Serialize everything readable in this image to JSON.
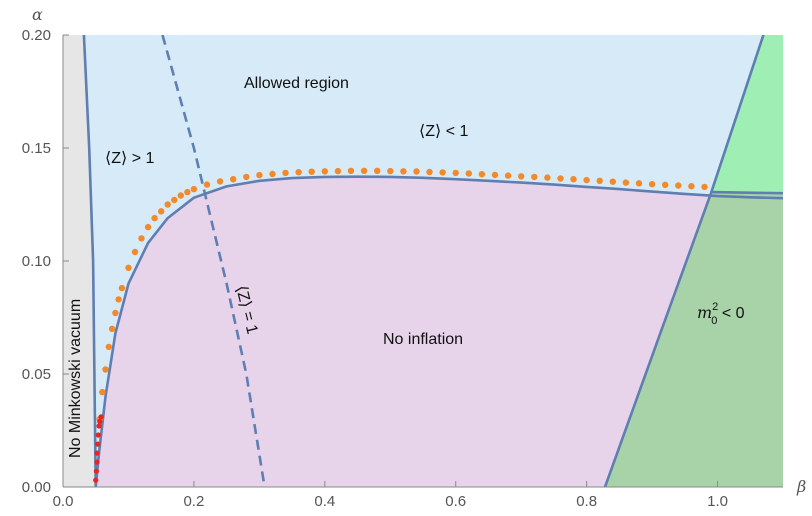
{
  "chart_data": {
    "type": "area",
    "title": "",
    "xlabel": "β",
    "ylabel": "α",
    "xlim": [
      0.0,
      1.1
    ],
    "ylim": [
      0.0,
      0.2
    ],
    "x_ticks": [
      "0.0",
      "0.2",
      "0.4",
      "0.6",
      "0.8",
      "1.0"
    ],
    "x_tick_values": [
      0.0,
      0.2,
      0.4,
      0.6,
      0.8,
      1.0
    ],
    "y_ticks": [
      "0.00",
      "0.05",
      "0.10",
      "0.15",
      "0.20"
    ],
    "y_tick_values": [
      0.0,
      0.05,
      0.1,
      0.15,
      0.2
    ],
    "grid": false,
    "regions": [
      {
        "label": "No Minkowski vacuum",
        "color": "#e6e6e6",
        "boundary": [
          [
            0.0,
            0.2
          ],
          [
            0.032,
            0.2
          ],
          [
            0.04,
            0.15
          ],
          [
            0.046,
            0.1
          ],
          [
            0.05,
            0.0
          ],
          [
            0.0,
            0.0
          ]
        ]
      },
      {
        "label": "Allowed region",
        "color": "#d6eaf8"
      },
      {
        "label": "No inflation",
        "color": "#e7d3ea"
      },
      {
        "label": "m²₀ < 0",
        "color": "#a8d3a8"
      },
      {
        "label": "",
        "color": "#9fefb4"
      }
    ],
    "curves": [
      {
        "name": "no-inflation-boundary",
        "color": "#5f7eb2",
        "style": "solid",
        "x": [
          0.05,
          0.055,
          0.065,
          0.08,
          0.1,
          0.13,
          0.16,
          0.2,
          0.25,
          0.3,
          0.35,
          0.4,
          0.45,
          0.5,
          0.55,
          0.6,
          0.65,
          0.7,
          0.75,
          0.8,
          0.85,
          0.9,
          0.95,
          0.98,
          1.0,
          1.05,
          1.1
        ],
        "y": [
          0.0,
          0.015,
          0.04,
          0.068,
          0.09,
          0.108,
          0.119,
          0.128,
          0.133,
          0.1355,
          0.1367,
          0.1372,
          0.1373,
          0.1372,
          0.1368,
          0.1362,
          0.1355,
          0.1347,
          0.1338,
          0.1328,
          0.1318,
          0.1307,
          0.1297,
          0.1291,
          0.1287,
          0.1282,
          0.1278
        ]
      },
      {
        "name": "minkowski-boundary",
        "color": "#5f7eb2",
        "style": "solid",
        "x": [
          0.032,
          0.04,
          0.046,
          0.05
        ],
        "y": [
          0.2,
          0.15,
          0.1,
          0.0
        ]
      },
      {
        "name": "Z-equals-1",
        "color": "#5f7eb2",
        "style": "dashed",
        "x": [
          0.152,
          0.2,
          0.25,
          0.28,
          0.308
        ],
        "y": [
          0.2,
          0.15,
          0.09,
          0.05,
          0.0
        ]
      },
      {
        "name": "mass-boundary",
        "color": "#5f7eb2",
        "style": "solid",
        "x": [
          0.828,
          0.915,
          0.99,
          1.07
        ],
        "y": [
          0.0,
          0.07,
          0.13,
          0.2
        ]
      },
      {
        "name": "upper-right-boundary",
        "color": "#5f7eb2",
        "style": "solid",
        "x": [
          0.99,
          1.1
        ],
        "y": [
          0.1305,
          0.13
        ]
      }
    ],
    "scatter": [
      {
        "color": "#f2892a",
        "x": [
          0.056,
          0.06,
          0.065,
          0.07,
          0.075,
          0.08,
          0.085,
          0.09,
          0.1,
          0.11,
          0.12,
          0.13,
          0.14,
          0.15,
          0.16,
          0.17,
          0.18,
          0.19,
          0.2,
          0.22,
          0.24,
          0.26,
          0.28,
          0.3,
          0.32,
          0.34,
          0.36,
          0.38,
          0.4,
          0.42,
          0.44,
          0.46,
          0.48,
          0.5,
          0.52,
          0.54,
          0.56,
          0.58,
          0.6,
          0.62,
          0.64,
          0.66,
          0.68,
          0.7,
          0.72,
          0.74,
          0.76,
          0.78,
          0.8,
          0.82,
          0.84,
          0.86,
          0.88,
          0.9,
          0.92,
          0.94,
          0.96,
          0.98
        ],
        "y": [
          0.03,
          0.042,
          0.052,
          0.062,
          0.07,
          0.077,
          0.083,
          0.088,
          0.097,
          0.104,
          0.11,
          0.115,
          0.119,
          0.122,
          0.125,
          0.127,
          0.129,
          0.1305,
          0.1318,
          0.1338,
          0.1352,
          0.1362,
          0.1372,
          0.138,
          0.1385,
          0.139,
          0.1393,
          0.1395,
          0.1397,
          0.1398,
          0.1399,
          0.1399,
          0.1399,
          0.1398,
          0.1397,
          0.1396,
          0.1394,
          0.1392,
          0.139,
          0.1387,
          0.1384,
          0.1381,
          0.1378,
          0.1375,
          0.1372,
          0.1369,
          0.1365,
          0.1362,
          0.1358,
          0.1355,
          0.1351,
          0.1347,
          0.1344,
          0.134,
          0.1337,
          0.1334,
          0.1331,
          0.1328
        ]
      },
      {
        "color": "#e8261c",
        "x": [
          0.05,
          0.051,
          0.052,
          0.052,
          0.053,
          0.054,
          0.055,
          0.056,
          0.058
        ],
        "y": [
          0.003,
          0.007,
          0.011,
          0.015,
          0.019,
          0.023,
          0.027,
          0.029,
          0.031
        ]
      }
    ],
    "annotations": {
      "allowed": "Allowed region",
      "z_greater": "⟨Z⟩ > 1",
      "z_less": "⟨Z⟩ < 1",
      "z_equal": "⟨Z⟩ = 1",
      "no_inflation": "No inflation",
      "no_minkowski": "No Minkowski vacuum",
      "mass_prefix": "m",
      "mass_sup": "2",
      "mass_sub": "0",
      "mass_suffix": " < 0"
    }
  }
}
